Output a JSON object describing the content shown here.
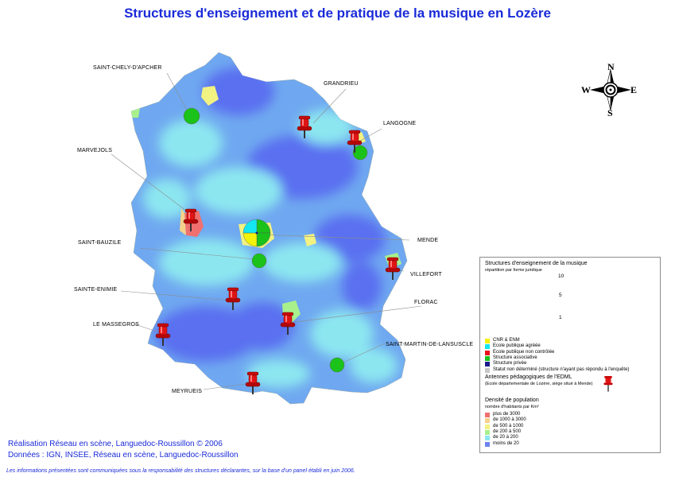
{
  "title": "Structures d'enseignement et de pratique de la musique en Lozère",
  "compass": {
    "north": "N",
    "south": "S",
    "east": "E",
    "west": "W"
  },
  "towns": [
    {
      "key": "saint-chely",
      "label": "SAINT-CHELY-D'APCHER"
    },
    {
      "key": "grandrieu",
      "label": "GRANDRIEU"
    },
    {
      "key": "langogne",
      "label": "LANGOGNE"
    },
    {
      "key": "marvejols",
      "label": "MARVEJOLS"
    },
    {
      "key": "mende",
      "label": "MENDE"
    },
    {
      "key": "saint-bauzile",
      "label": "SAINT-BAUZILE"
    },
    {
      "key": "villefort",
      "label": "VILLEFORT"
    },
    {
      "key": "sainte-enimie",
      "label": "SAINTE-ENIMIE"
    },
    {
      "key": "florac",
      "label": "FLORAC"
    },
    {
      "key": "le-massegros",
      "label": "LE MASSEGROS"
    },
    {
      "key": "saint-martin",
      "label": "SAINT-MARTIN-DE-LANSUSCLE"
    },
    {
      "key": "meyrueis",
      "label": "MEYRUEIS"
    }
  ],
  "legend": {
    "structures_title": "Structures d'enseignement de la musique",
    "structures_subtitle": "répartition par forme juridique",
    "scale_values": [
      "10",
      "5",
      "1"
    ],
    "categories": [
      {
        "label": "CNR & ENM",
        "color": "#f2f20a"
      },
      {
        "label": "Ecole publique agréée",
        "color": "#14e6f0"
      },
      {
        "label": "Ecole publique non contrôlée",
        "color": "#e8121a"
      },
      {
        "label": "Structure associative",
        "color": "#1ac21a"
      },
      {
        "label": "Structure privée",
        "color": "#1a1a8c"
      },
      {
        "label": "Statut non déterminé (structure n'ayant pas répondu à l'enquête)",
        "color": "#c8c8c8"
      }
    ],
    "antennes_title": "Antennes pédagogiques de l'EDML",
    "antennes_subtitle": "(Ecole départementale de Lozère, siège situé à Mende)",
    "density_title": "Densité de population",
    "density_subtitle": "nombre d'habitants par Km²",
    "density_classes": [
      {
        "label": "plus de 3000",
        "color": "#f07070"
      },
      {
        "label": "de 1000 à 3000",
        "color": "#f5d28c"
      },
      {
        "label": "de 500 à 1000",
        "color": "#f2f282"
      },
      {
        "label": "de 200 à 500",
        "color": "#a8f08c"
      },
      {
        "label": "de 20 à 200",
        "color": "#8ce6f0"
      },
      {
        "label": "moins de 20",
        "color": "#6e82f0"
      }
    ]
  },
  "credits": {
    "line1": "Réalisation Réseau en scène, Languedoc-Roussillon © 2006",
    "line2": "Données : IGN, INSEE, Réseau en scène, Languedoc-Roussillon"
  },
  "note": "Les informations présentées sont communiquées sous la responsabilité des structures déclarantes, sur la base d'un panel établi en juin 2006."
}
